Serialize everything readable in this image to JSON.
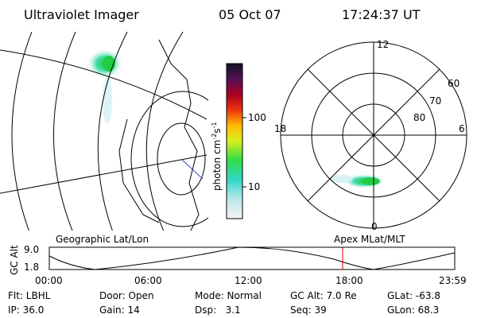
{
  "header": {
    "title": "Ultraviolet Imager",
    "date": "05 Oct 07",
    "time": "17:24:37 UT"
  },
  "colorbar": {
    "label": [
      "photon cm",
      "-2",
      "s",
      "-1"
    ],
    "ticks": [
      "100",
      "10"
    ]
  },
  "polar": {
    "mlt": [
      "12",
      "18",
      "6",
      "0"
    ],
    "mlat": [
      "60",
      "70",
      "80"
    ]
  },
  "panels": {
    "left": "Geographic Lat/Lon",
    "right": "Apex MLat/MLT"
  },
  "altitude": {
    "label": "GC Alt",
    "ticks": [
      "9.0",
      "1.8"
    ],
    "times": [
      "00:00",
      "06:00",
      "12:00",
      "18:00",
      "23:59"
    ]
  },
  "footer": [
    [
      "Flt: LBHL",
      "Door: Open",
      "Mode: Normal",
      "GC Alt: 7.0 Re",
      "GLat: -63.8"
    ],
    [
      "IP: 36.0",
      "Gain: 14",
      "Dsp:   3.1",
      "Seq: 39",
      "GLon: 68.3"
    ]
  ]
}
